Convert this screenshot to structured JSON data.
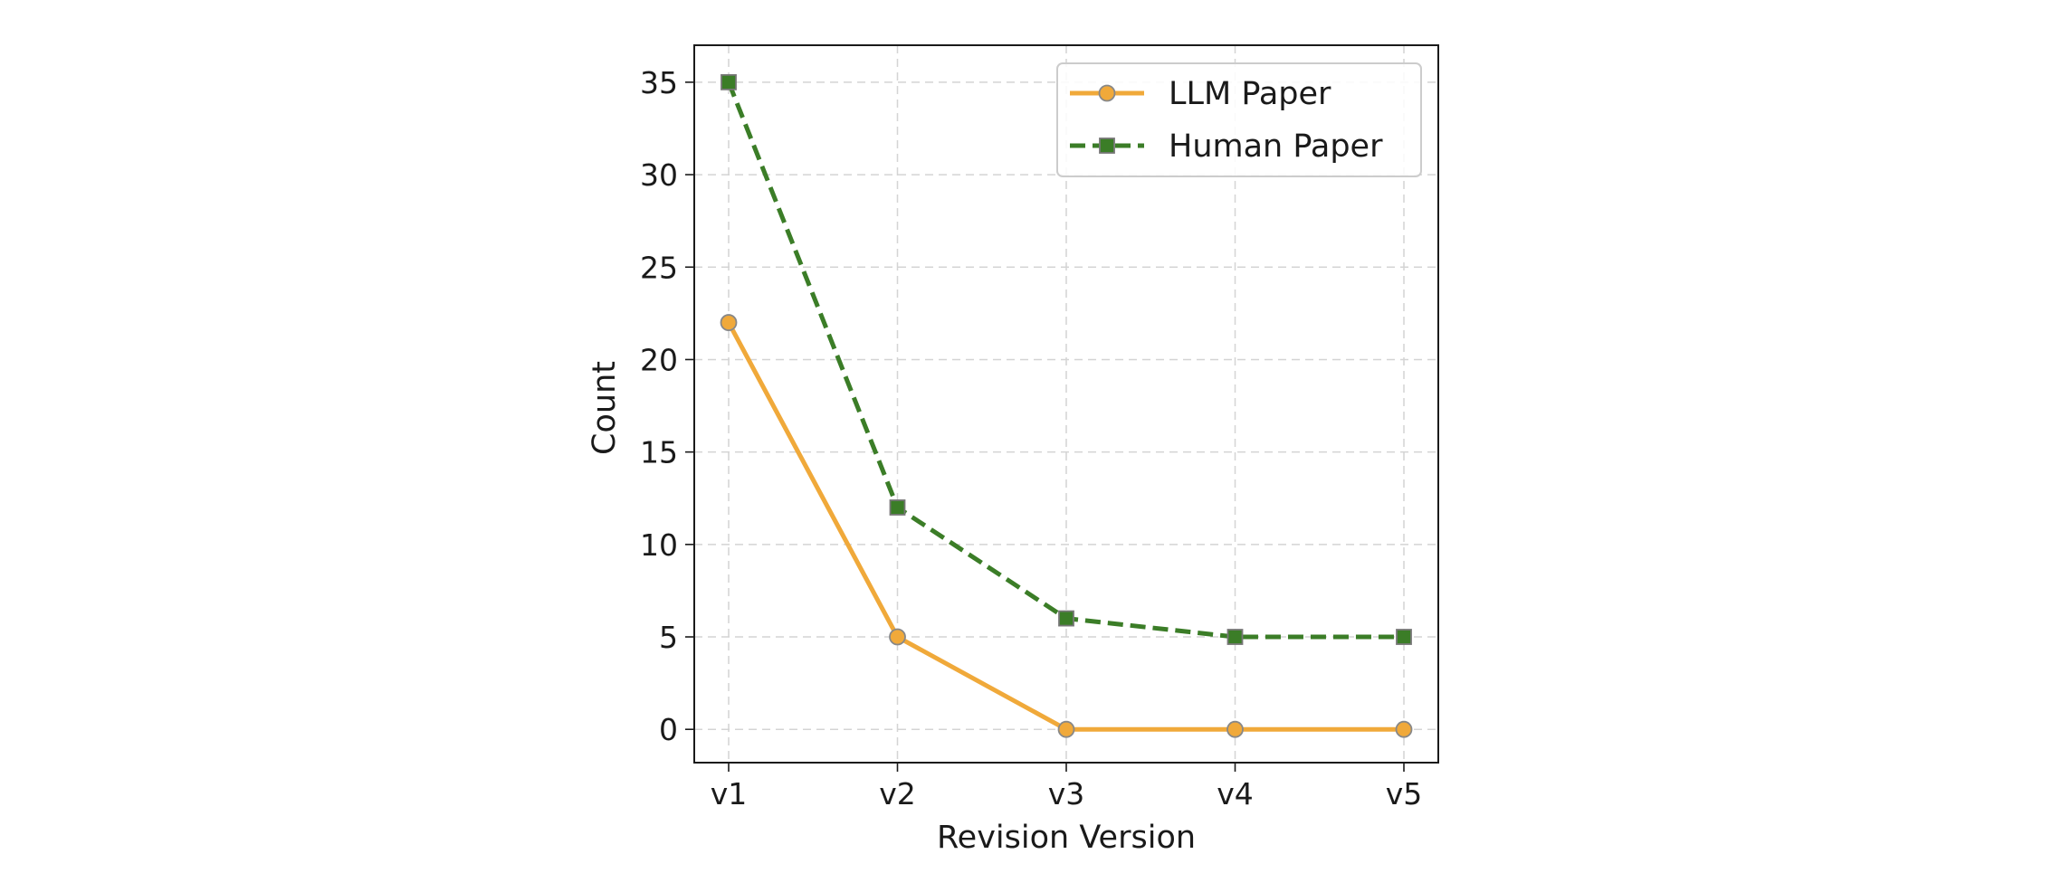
{
  "chart_data": {
    "type": "line",
    "title": "",
    "xlabel": "Revision Version",
    "ylabel": "Count",
    "categories": [
      "v1",
      "v2",
      "v3",
      "v4",
      "v5"
    ],
    "ylim": [
      -1.8,
      37
    ],
    "yticks": [
      0,
      5,
      10,
      15,
      20,
      25,
      30,
      35
    ],
    "grid": true,
    "legend_position": "top-right",
    "series": [
      {
        "name": "LLM Paper",
        "values": [
          22,
          5,
          0,
          0,
          0
        ],
        "color": "#f0a93a",
        "marker": "circle",
        "line_style": "solid"
      },
      {
        "name": "Human Paper",
        "values": [
          35,
          12,
          6,
          5,
          5
        ],
        "color": "#3b7d27",
        "marker": "square",
        "line_style": "dashed"
      }
    ]
  }
}
